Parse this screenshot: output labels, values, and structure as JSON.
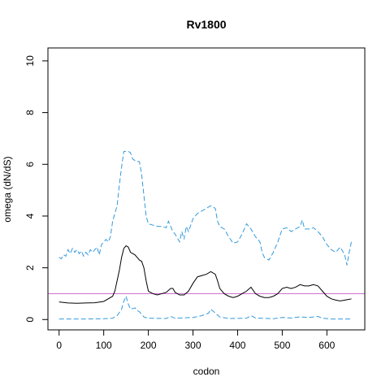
{
  "chart_data": {
    "type": "line",
    "title": "Rv1800",
    "xlabel": "codon",
    "ylabel": "omega (dN/dS)",
    "xlim": [
      -25,
      685
    ],
    "ylim": [
      -0.4,
      10.5
    ],
    "x_ticks": [
      0,
      100,
      200,
      300,
      400,
      500,
      600
    ],
    "y_ticks": [
      0,
      2,
      4,
      6,
      8,
      10
    ],
    "grid": false,
    "reference_line": {
      "y": 1,
      "color": "#cc66cc"
    },
    "series": [
      {
        "style": "solid",
        "color": "#000000",
        "points": [
          [
            0,
            0.68
          ],
          [
            20,
            0.64
          ],
          [
            40,
            0.63
          ],
          [
            60,
            0.64
          ],
          [
            80,
            0.65
          ],
          [
            100,
            0.7
          ],
          [
            110,
            0.8
          ],
          [
            120,
            0.9
          ],
          [
            125,
            1.1
          ],
          [
            130,
            1.5
          ],
          [
            135,
            1.9
          ],
          [
            140,
            2.4
          ],
          [
            145,
            2.75
          ],
          [
            150,
            2.85
          ],
          [
            155,
            2.8
          ],
          [
            160,
            2.6
          ],
          [
            170,
            2.5
          ],
          [
            180,
            2.3
          ],
          [
            185,
            2.25
          ],
          [
            190,
            2.0
          ],
          [
            195,
            1.5
          ],
          [
            200,
            1.1
          ],
          [
            210,
            1.0
          ],
          [
            220,
            0.95
          ],
          [
            230,
            1.0
          ],
          [
            240,
            1.05
          ],
          [
            250,
            1.2
          ],
          [
            255,
            1.2
          ],
          [
            260,
            1.05
          ],
          [
            270,
            0.95
          ],
          [
            280,
            0.95
          ],
          [
            290,
            1.1
          ],
          [
            300,
            1.4
          ],
          [
            310,
            1.65
          ],
          [
            320,
            1.7
          ],
          [
            330,
            1.75
          ],
          [
            340,
            1.85
          ],
          [
            350,
            1.75
          ],
          [
            355,
            1.5
          ],
          [
            360,
            1.2
          ],
          [
            370,
            1.0
          ],
          [
            380,
            0.9
          ],
          [
            390,
            0.85
          ],
          [
            400,
            0.9
          ],
          [
            410,
            1.0
          ],
          [
            420,
            1.1
          ],
          [
            430,
            1.25
          ],
          [
            440,
            1.0
          ],
          [
            450,
            0.9
          ],
          [
            460,
            0.85
          ],
          [
            470,
            0.85
          ],
          [
            480,
            0.9
          ],
          [
            490,
            1.0
          ],
          [
            500,
            1.2
          ],
          [
            510,
            1.25
          ],
          [
            520,
            1.2
          ],
          [
            530,
            1.25
          ],
          [
            540,
            1.35
          ],
          [
            550,
            1.3
          ],
          [
            560,
            1.3
          ],
          [
            570,
            1.35
          ],
          [
            580,
            1.3
          ],
          [
            590,
            1.1
          ],
          [
            600,
            0.9
          ],
          [
            610,
            0.8
          ],
          [
            620,
            0.75
          ],
          [
            630,
            0.72
          ],
          [
            640,
            0.75
          ],
          [
            650,
            0.78
          ],
          [
            655,
            0.8
          ]
        ]
      },
      {
        "style": "dashed",
        "color": "#3399dd",
        "points": [
          [
            0,
            2.4
          ],
          [
            5,
            2.35
          ],
          [
            10,
            2.5
          ],
          [
            15,
            2.45
          ],
          [
            20,
            2.7
          ],
          [
            25,
            2.55
          ],
          [
            30,
            2.75
          ],
          [
            35,
            2.6
          ],
          [
            40,
            2.7
          ],
          [
            45,
            2.55
          ],
          [
            50,
            2.65
          ],
          [
            55,
            2.45
          ],
          [
            60,
            2.6
          ],
          [
            65,
            2.5
          ],
          [
            70,
            2.7
          ],
          [
            75,
            2.6
          ],
          [
            80,
            2.7
          ],
          [
            85,
            2.8
          ],
          [
            90,
            2.5
          ],
          [
            95,
            2.9
          ],
          [
            100,
            3.0
          ],
          [
            105,
            3.1
          ],
          [
            110,
            3.0
          ],
          [
            115,
            3.2
          ],
          [
            120,
            3.8
          ],
          [
            125,
            4.1
          ],
          [
            130,
            4.4
          ],
          [
            135,
            5.2
          ],
          [
            140,
            5.9
          ],
          [
            145,
            6.5
          ],
          [
            150,
            6.5
          ],
          [
            155,
            6.5
          ],
          [
            160,
            6.45
          ],
          [
            165,
            6.2
          ],
          [
            170,
            6.15
          ],
          [
            180,
            6.1
          ],
          [
            185,
            5.6
          ],
          [
            190,
            4.8
          ],
          [
            195,
            4.0
          ],
          [
            200,
            3.7
          ],
          [
            210,
            3.65
          ],
          [
            220,
            3.6
          ],
          [
            230,
            3.6
          ],
          [
            240,
            3.55
          ],
          [
            245,
            3.8
          ],
          [
            250,
            3.6
          ],
          [
            255,
            3.4
          ],
          [
            260,
            3.3
          ],
          [
            270,
            3.0
          ],
          [
            275,
            3.4
          ],
          [
            280,
            3.1
          ],
          [
            285,
            3.6
          ],
          [
            290,
            3.4
          ],
          [
            300,
            3.9
          ],
          [
            310,
            4.1
          ],
          [
            320,
            4.2
          ],
          [
            330,
            4.3
          ],
          [
            340,
            4.4
          ],
          [
            350,
            4.3
          ],
          [
            355,
            3.8
          ],
          [
            360,
            3.6
          ],
          [
            370,
            3.5
          ],
          [
            380,
            3.2
          ],
          [
            390,
            2.95
          ],
          [
            400,
            3.0
          ],
          [
            410,
            3.3
          ],
          [
            420,
            3.7
          ],
          [
            430,
            3.5
          ],
          [
            440,
            3.2
          ],
          [
            450,
            3.0
          ],
          [
            455,
            2.6
          ],
          [
            460,
            2.4
          ],
          [
            470,
            2.3
          ],
          [
            480,
            2.6
          ],
          [
            490,
            3.0
          ],
          [
            500,
            3.5
          ],
          [
            510,
            3.55
          ],
          [
            520,
            3.4
          ],
          [
            530,
            3.5
          ],
          [
            540,
            3.6
          ],
          [
            545,
            3.85
          ],
          [
            550,
            3.5
          ],
          [
            560,
            3.5
          ],
          [
            570,
            3.55
          ],
          [
            580,
            3.4
          ],
          [
            590,
            3.2
          ],
          [
            600,
            2.9
          ],
          [
            610,
            2.7
          ],
          [
            620,
            2.6
          ],
          [
            630,
            2.8
          ],
          [
            640,
            2.5
          ],
          [
            645,
            2.1
          ],
          [
            650,
            2.6
          ],
          [
            655,
            3.0
          ]
        ]
      },
      {
        "style": "dashed",
        "color": "#3399dd",
        "points": [
          [
            0,
            0.02
          ],
          [
            50,
            0.02
          ],
          [
            100,
            0.03
          ],
          [
            120,
            0.05
          ],
          [
            130,
            0.15
          ],
          [
            140,
            0.4
          ],
          [
            145,
            0.7
          ],
          [
            150,
            0.9
          ],
          [
            155,
            0.6
          ],
          [
            160,
            0.4
          ],
          [
            170,
            0.45
          ],
          [
            175,
            0.35
          ],
          [
            180,
            0.3
          ],
          [
            190,
            0.1
          ],
          [
            200,
            0.05
          ],
          [
            240,
            0.04
          ],
          [
            250,
            0.12
          ],
          [
            260,
            0.05
          ],
          [
            300,
            0.08
          ],
          [
            320,
            0.15
          ],
          [
            335,
            0.25
          ],
          [
            340,
            0.4
          ],
          [
            350,
            0.25
          ],
          [
            360,
            0.1
          ],
          [
            380,
            0.04
          ],
          [
            420,
            0.05
          ],
          [
            430,
            0.15
          ],
          [
            440,
            0.06
          ],
          [
            480,
            0.03
          ],
          [
            500,
            0.08
          ],
          [
            520,
            0.06
          ],
          [
            540,
            0.1
          ],
          [
            560,
            0.08
          ],
          [
            580,
            0.12
          ],
          [
            590,
            0.05
          ],
          [
            610,
            0.02
          ],
          [
            655,
            0.02
          ]
        ]
      }
    ]
  }
}
